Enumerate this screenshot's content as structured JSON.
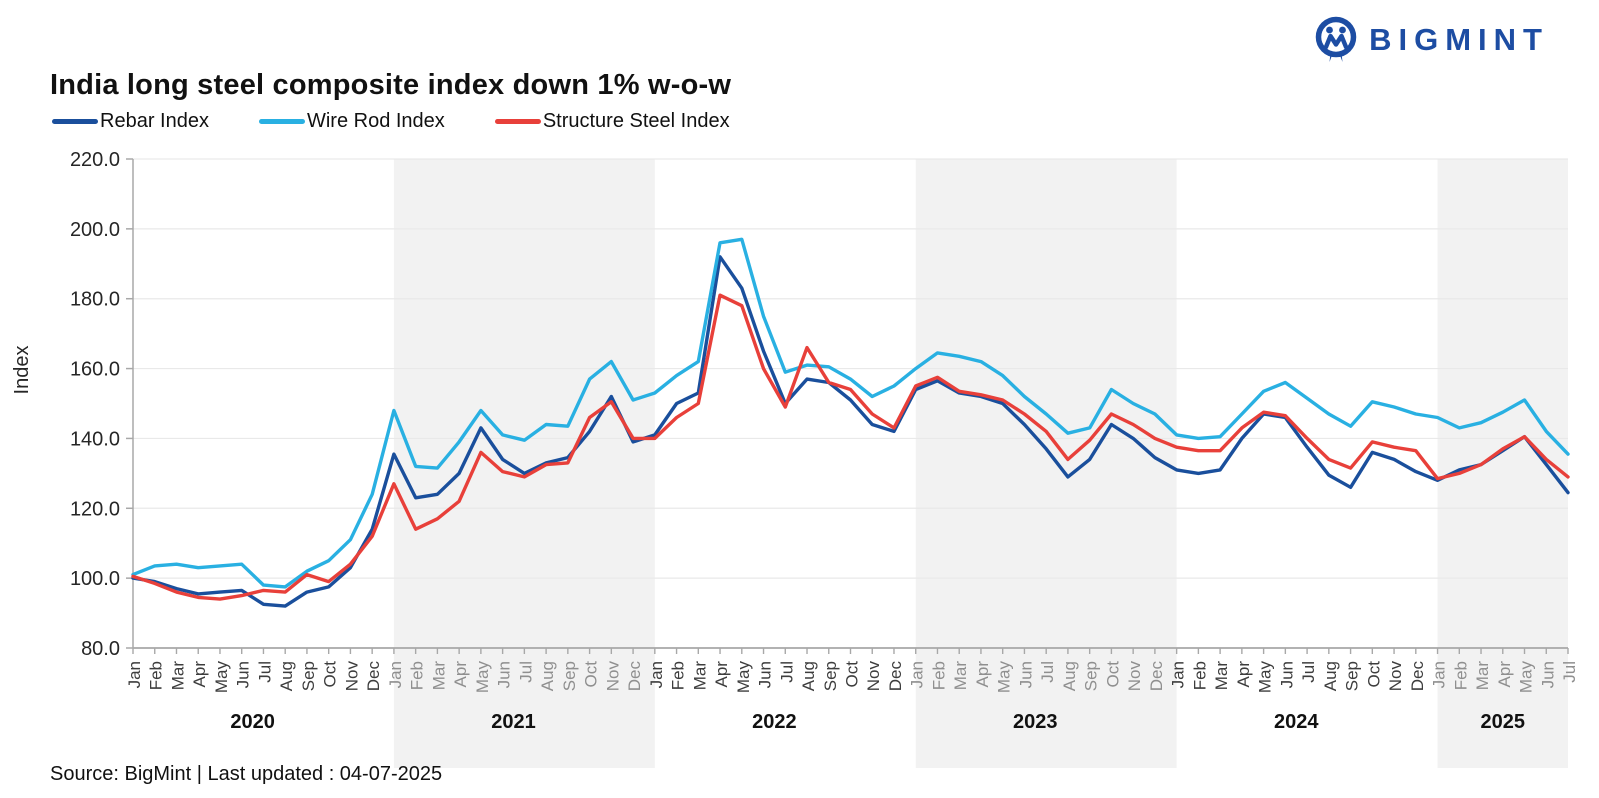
{
  "header": {
    "title": "India long steel composite index down 1% w-o-w",
    "brand": "BIGMINT"
  },
  "footer": {
    "source": "Source: BigMint | Last updated : 04-07-2025"
  },
  "colors": {
    "band": "#f2f2f2",
    "grid": "#e9e9e9",
    "axis": "#a8a8a8",
    "month_label_dark": "#3d3d3d",
    "month_label_gray": "#8f8f8f",
    "brand_blue": "#1d4da3"
  },
  "chart_data": {
    "type": "line",
    "title": "India long steel composite index down 1% w-o-w",
    "ylabel": "Index",
    "xlabel": "",
    "ylim": [
      80,
      220
    ],
    "ytick_labels": [
      "220.0",
      "200.0",
      "180.0",
      "160.0",
      "140.0",
      "120.0",
      "100.0",
      "80.0"
    ],
    "grid": true,
    "legend_position": "top-left",
    "month_labels": [
      "Jan",
      "Feb",
      "Mar",
      "Apr",
      "May",
      "Jun",
      "Jul",
      "Aug",
      "Sep",
      "Oct",
      "Nov",
      "Dec"
    ],
    "years": [
      2020,
      2021,
      2022,
      2023,
      2024,
      2025
    ],
    "shaded_years": [
      2021,
      2023,
      2025
    ],
    "x_start": "Jan 2020",
    "x_end": "Jul 2025",
    "series": [
      {
        "name": "Rebar Index",
        "color": "#1a4f9c",
        "values": [
          100,
          99,
          97,
          95.5,
          96,
          96.5,
          92.5,
          92,
          96,
          97.5,
          103,
          114,
          135.5,
          123,
          124,
          130,
          143,
          134,
          130,
          133,
          134.5,
          142,
          152,
          139,
          141,
          150,
          153,
          192,
          183,
          165,
          150,
          157,
          156,
          151,
          144,
          142,
          154,
          156.5,
          153,
          152,
          150,
          144,
          137,
          129,
          134,
          144,
          140,
          134.5,
          131,
          130,
          131,
          140,
          147,
          146,
          137.5,
          129.5,
          126,
          136,
          134,
          130.5,
          128,
          131,
          132.5,
          136.5,
          140.5,
          132.5,
          124.5
        ]
      },
      {
        "name": "Wire Rod Index",
        "color": "#29b0e2",
        "values": [
          101,
          103.5,
          104,
          103,
          103.5,
          104,
          98,
          97.5,
          102,
          105,
          111,
          124,
          148,
          132,
          131.5,
          139,
          148,
          141,
          139.5,
          144,
          143.5,
          157,
          162,
          151,
          153,
          158,
          162,
          196,
          197,
          175,
          159,
          161,
          160.5,
          157,
          152,
          155,
          160,
          164.5,
          163.5,
          162,
          158,
          152,
          147,
          141.5,
          143,
          154,
          150,
          147,
          141,
          140,
          140.5,
          147,
          153.5,
          156,
          151.5,
          147,
          143.5,
          150.5,
          149,
          147,
          146,
          143,
          144.5,
          147.5,
          151,
          142,
          135.5
        ]
      },
      {
        "name": "Structure Steel Index",
        "color": "#e8403a",
        "values": [
          100.5,
          98.5,
          96,
          94.5,
          94,
          95,
          96.5,
          96,
          101,
          99,
          104,
          112,
          127,
          114,
          117,
          122,
          136,
          130.5,
          129,
          132.5,
          133,
          146,
          150.5,
          140,
          140,
          146,
          150,
          181,
          178,
          160,
          149,
          166,
          156,
          154,
          147,
          143,
          155,
          157.5,
          153.5,
          152.5,
          151,
          147,
          142,
          134,
          139.5,
          147,
          144,
          140,
          137.5,
          136.5,
          136.5,
          143,
          147.5,
          146.5,
          140,
          134,
          131.5,
          139,
          137.5,
          136.5,
          128.5,
          130,
          132.5,
          137,
          140.5,
          134,
          129
        ]
      }
    ]
  }
}
